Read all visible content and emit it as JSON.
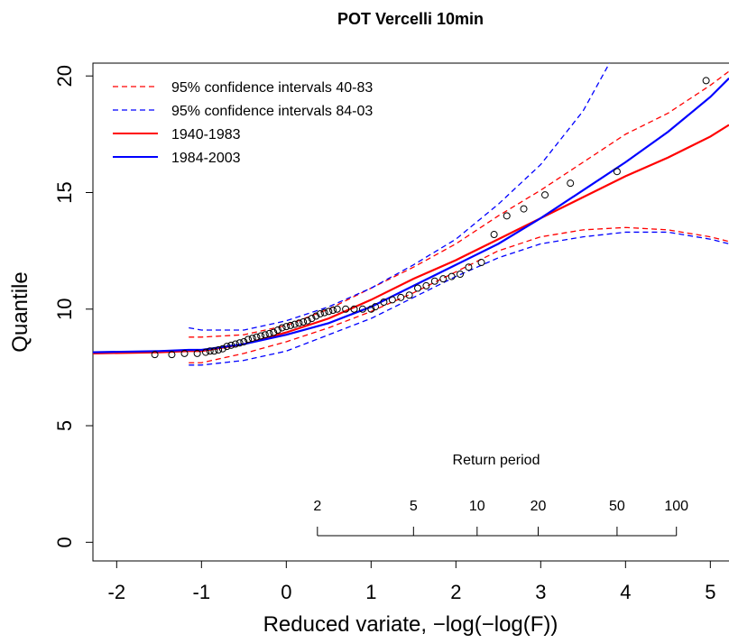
{
  "chart_data": {
    "type": "line",
    "title": "POT Vercelli 10min",
    "x_label": "Reduced variate,  −log(−log(F))",
    "y_label": "Quantile",
    "xlim": [
      -2.28,
      5.22
    ],
    "ylim": [
      -0.8,
      20.55
    ],
    "xticks": [
      -2,
      -1,
      0,
      1,
      2,
      3,
      4,
      5
    ],
    "yticks": [
      0,
      5,
      10,
      15,
      20
    ],
    "legend": "top-left",
    "x": [
      -2.28,
      -1.5,
      -1.15,
      -1,
      -0.5,
      0,
      0.5,
      1,
      1.5,
      2,
      2.5,
      3,
      3.5,
      4,
      4.5,
      5,
      5.22
    ],
    "series": [
      {
        "name": "95% confidence intervals 40-83",
        "color": "#ff0000",
        "dashed": true,
        "values": [
          null,
          null,
          8.8,
          8.8,
          8.9,
          9.3,
          10.0,
          10.9,
          11.8,
          12.8,
          14.0,
          15.1,
          16.3,
          17.5,
          18.4,
          19.6,
          20.2
        ],
        "lower_values": [
          null,
          null,
          7.7,
          7.7,
          8.1,
          8.6,
          9.2,
          9.9,
          10.7,
          11.6,
          12.5,
          13.1,
          13.4,
          13.5,
          13.4,
          13.1,
          12.9
        ]
      },
      {
        "name": "95% confidence intervals 84-03",
        "color": "#0000ff",
        "dashed": true,
        "values": [
          null,
          null,
          9.2,
          9.1,
          9.1,
          9.5,
          10.1,
          10.9,
          11.9,
          13.0,
          14.5,
          16.2,
          18.5,
          21.8,
          null,
          null,
          null
        ],
        "lower_values": [
          null,
          null,
          7.6,
          7.6,
          7.8,
          8.2,
          8.9,
          9.6,
          10.5,
          11.4,
          12.2,
          12.8,
          13.1,
          13.3,
          13.3,
          13.0,
          12.8
        ]
      },
      {
        "name": "1940-1983",
        "color": "#ff0000",
        "dashed": false,
        "values": [
          8.1,
          8.15,
          8.2,
          8.2,
          8.5,
          9.0,
          9.6,
          10.4,
          11.3,
          12.1,
          13.0,
          13.9,
          14.8,
          15.7,
          16.5,
          17.4,
          17.9
        ]
      },
      {
        "name": "1984-2003",
        "color": "#0000ff",
        "dashed": false,
        "values": [
          8.15,
          8.2,
          8.25,
          8.25,
          8.5,
          8.9,
          9.4,
          10.1,
          11.0,
          11.9,
          12.8,
          13.9,
          15.1,
          16.3,
          17.6,
          19.1,
          19.9
        ]
      }
    ],
    "points": {
      "color": "#000000",
      "x": [
        -1.55,
        -1.35,
        -1.2,
        -1.05,
        -0.95,
        -0.9,
        -0.85,
        -0.8,
        -0.75,
        -0.7,
        -0.65,
        -0.6,
        -0.55,
        -0.5,
        -0.45,
        -0.4,
        -0.35,
        -0.3,
        -0.25,
        -0.2,
        -0.15,
        -0.1,
        -0.05,
        0,
        0.05,
        0.1,
        0.15,
        0.2,
        0.25,
        0.3,
        0.35,
        0.4,
        0.45,
        0.5,
        0.55,
        0.6,
        0.7,
        0.8,
        0.9,
        1.0,
        1.05,
        1.15,
        1.25,
        1.35,
        1.45,
        1.55,
        1.65,
        1.75,
        1.85,
        1.95,
        2.05,
        2.15,
        2.3,
        2.45,
        2.6,
        2.8,
        3.05,
        3.35,
        3.9,
        4.95
      ],
      "y": [
        8.05,
        8.05,
        8.1,
        8.1,
        8.15,
        8.2,
        8.2,
        8.25,
        8.3,
        8.4,
        8.45,
        8.5,
        8.55,
        8.6,
        8.7,
        8.75,
        8.8,
        8.85,
        8.9,
        8.95,
        9.0,
        9.1,
        9.2,
        9.25,
        9.3,
        9.35,
        9.4,
        9.45,
        9.5,
        9.6,
        9.7,
        9.8,
        9.85,
        9.9,
        9.95,
        10.0,
        10.0,
        10.0,
        10.0,
        10.0,
        10.1,
        10.3,
        10.4,
        10.5,
        10.6,
        10.9,
        11.0,
        11.2,
        11.3,
        11.4,
        11.5,
        11.8,
        12.0,
        13.2,
        14.0,
        14.3,
        14.9,
        15.4,
        15.9,
        19.8
      ]
    },
    "return_period": {
      "label": "Return period",
      "ticks": [
        {
          "value": 0.367,
          "label": "2"
        },
        {
          "value": 1.5,
          "label": "5"
        },
        {
          "value": 2.25,
          "label": "10"
        },
        {
          "value": 2.97,
          "label": "20"
        },
        {
          "value": 3.9,
          "label": "50"
        },
        {
          "value": 4.6,
          "label": "100"
        }
      ]
    }
  }
}
